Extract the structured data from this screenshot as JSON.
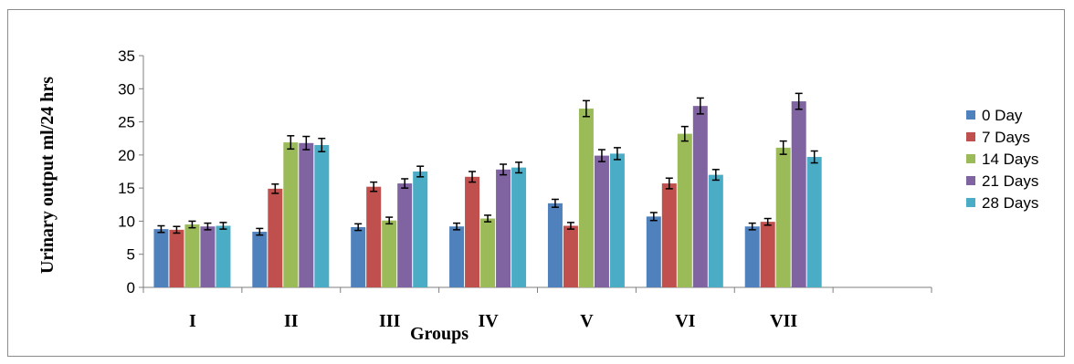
{
  "chart_data": {
    "type": "bar",
    "title": "",
    "xlabel": "Groups",
    "ylabel": "Urinary output ml/24 hrs",
    "ylim": [
      0,
      35
    ],
    "yticks": [
      0,
      5,
      10,
      15,
      20,
      25,
      30,
      35
    ],
    "grid": false,
    "legend_position": "right",
    "categories": [
      "I",
      "II",
      "III",
      "IV",
      "V",
      "VI",
      "VII"
    ],
    "series": [
      {
        "name": "0 Day",
        "color": "#4f81bd",
        "values": [
          8.8,
          8.4,
          9.1,
          9.2,
          12.7,
          10.7,
          9.2
        ],
        "errors": [
          0.5,
          0.5,
          0.5,
          0.5,
          0.6,
          0.6,
          0.5
        ]
      },
      {
        "name": "7 Days",
        "color": "#c0504d",
        "values": [
          8.7,
          14.9,
          15.2,
          16.7,
          9.3,
          15.7,
          9.9
        ],
        "errors": [
          0.5,
          0.7,
          0.7,
          0.8,
          0.5,
          0.8,
          0.5
        ]
      },
      {
        "name": "14 Days",
        "color": "#9bbb59",
        "values": [
          9.5,
          21.9,
          10.1,
          10.4,
          27.0,
          23.2,
          21.1
        ],
        "errors": [
          0.5,
          1.0,
          0.5,
          0.5,
          1.2,
          1.1,
          1.0
        ]
      },
      {
        "name": "21 Days",
        "color": "#8064a2",
        "values": [
          9.2,
          21.8,
          15.7,
          17.8,
          19.9,
          27.4,
          28.1
        ],
        "errors": [
          0.5,
          1.0,
          0.7,
          0.8,
          0.9,
          1.2,
          1.2
        ]
      },
      {
        "name": "28 Days",
        "color": "#4bacc6",
        "values": [
          9.3,
          21.5,
          17.5,
          18.1,
          20.2,
          17.0,
          19.7
        ],
        "errors": [
          0.5,
          1.0,
          0.8,
          0.8,
          0.9,
          0.8,
          0.9
        ]
      }
    ],
    "empty_trailing_slots": 1
  }
}
